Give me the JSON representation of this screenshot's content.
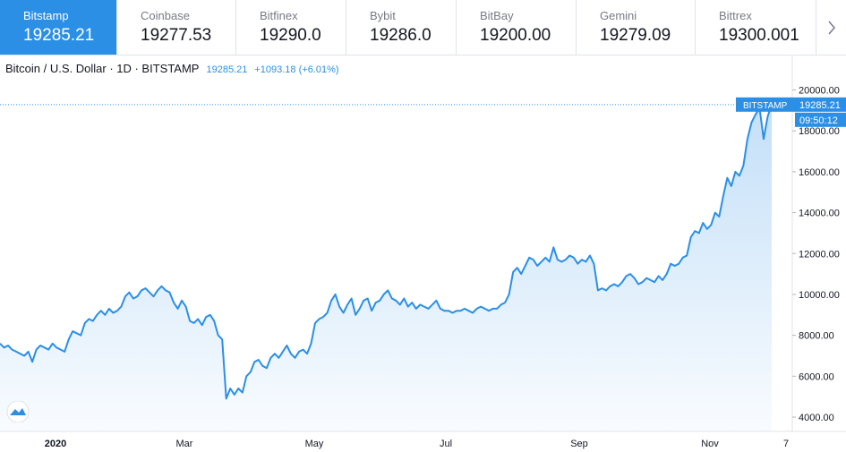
{
  "exchanges": [
    {
      "name": "Bitstamp",
      "price": "19285.21",
      "active": true
    },
    {
      "name": "Coinbase",
      "price": "19277.53"
    },
    {
      "name": "Bitfinex",
      "price": "19290.0"
    },
    {
      "name": "Bybit",
      "price": "19286.0"
    },
    {
      "name": "BitBay",
      "price": "19200.00"
    },
    {
      "name": "Gemini",
      "price": "19279.09"
    },
    {
      "name": "Bittrex",
      "price": "19300.001"
    }
  ],
  "header": {
    "symbol": "Bitcoin / U.S. Dollar · 1D · BITSTAMP",
    "price": "19285.21",
    "change": "+1093.18 (+6.01%)"
  },
  "icons": {
    "next": "chevron-right-icon",
    "logo": "tradingview-logo-icon"
  },
  "colors": {
    "line": "#2b8fe6",
    "active_tab": "#2b8fe6"
  },
  "chart_data": {
    "type": "area",
    "series": [
      {
        "values": [
          7600,
          7400,
          7500,
          7300,
          7200,
          7100,
          7000,
          7200,
          6700,
          7300,
          7500,
          7400,
          7300,
          7600,
          7400,
          7300,
          7200,
          7800,
          8200,
          8100,
          8000,
          8600,
          8800,
          8700,
          9000,
          9200,
          9000,
          9300,
          9100,
          9200,
          9400,
          9900,
          10100,
          9800,
          9900,
          10200,
          10300,
          10100,
          9900,
          10200,
          10400,
          10200,
          10100,
          9600,
          9300,
          9700,
          9400,
          8700,
          8600,
          8800,
          8500,
          8900,
          9000,
          8700,
          8000,
          7800,
          4900,
          5400,
          5100,
          5400,
          5200,
          6000,
          6200,
          6700,
          6800,
          6500,
          6400,
          6900,
          7100,
          6900,
          7200,
          7500,
          7100,
          6900,
          7200,
          7300,
          7100,
          7600,
          8600,
          8800,
          8900,
          9100,
          9700,
          10000,
          9400,
          9100,
          9500,
          9800,
          9000,
          9300,
          9700,
          9800,
          9200,
          9600,
          9700,
          10000,
          10200,
          9800,
          9700,
          9500,
          9800,
          9400,
          9600,
          9300,
          9500,
          9400,
          9300,
          9500,
          9700,
          9300,
          9200,
          9200,
          9100,
          9200,
          9200,
          9300,
          9200,
          9100,
          9300,
          9400,
          9300,
          9200,
          9300,
          9300,
          9500,
          9600,
          10000,
          11100,
          11300,
          11000,
          11400,
          11800,
          11700,
          11400,
          11600,
          11800,
          11600,
          12300,
          11700,
          11600,
          11700,
          11900,
          11800,
          11500,
          11700,
          11600,
          11900,
          11500,
          10200,
          10300,
          10200,
          10400,
          10500,
          10400,
          10600,
          10900,
          11000,
          10800,
          10500,
          10600,
          10800,
          10700,
          10600,
          10900,
          10700,
          11000,
          11500,
          11400,
          11500,
          11800,
          11900,
          12800,
          13100,
          13000,
          13500,
          13200,
          13400,
          14000,
          13800,
          14800,
          15700,
          15300,
          16000,
          15800,
          16300,
          17600,
          18400,
          18800,
          19100,
          17600,
          18700,
          19285.21
        ]
      }
    ],
    "x_tick_labels": [
      "2020",
      "Mar",
      "May",
      "Jul",
      "Sep",
      "Nov",
      "7"
    ],
    "y_ticks": [
      4000,
      6000,
      8000,
      10000,
      12000,
      14000,
      16000,
      18000,
      20000
    ],
    "y_tick_labels": [
      "4000.00",
      "6000.00",
      "8000.00",
      "10000.00",
      "12000.00",
      "14000.00",
      "16000.00",
      "18000.00",
      "20000.00"
    ],
    "last_value_label": "19285.21",
    "price_source_label": "BITSTAMP",
    "countdown_label": "09:50:12",
    "grid": false
  }
}
